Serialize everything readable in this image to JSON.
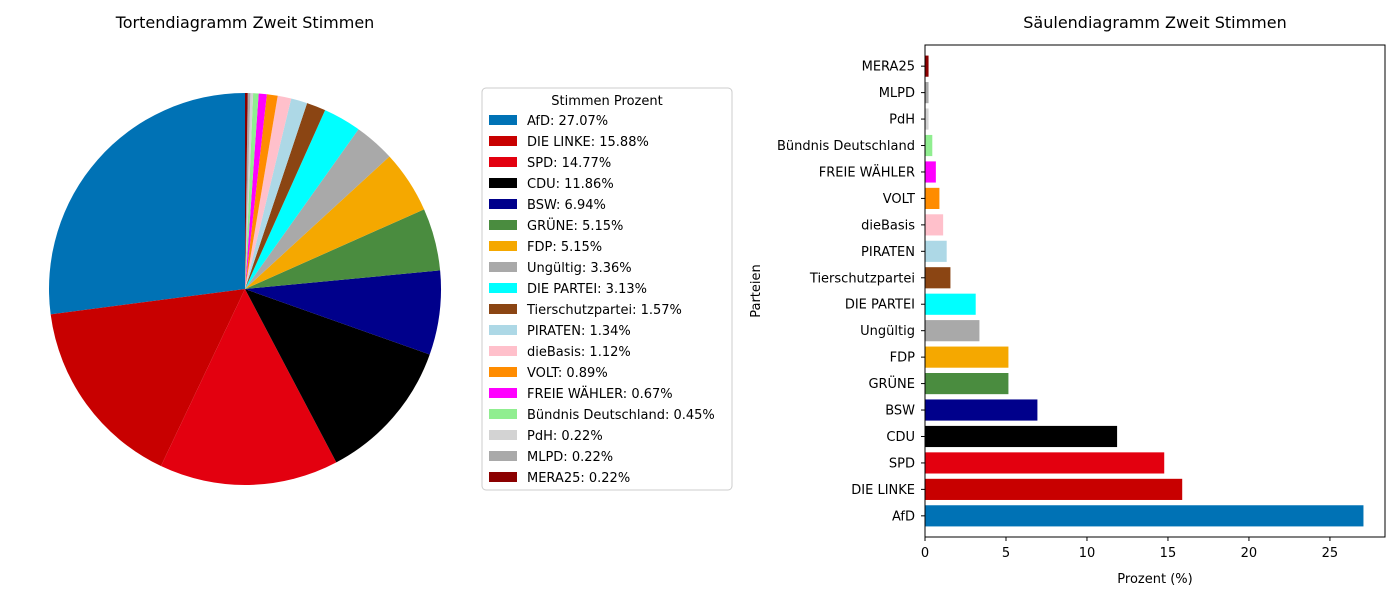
{
  "figure": {
    "pie_title": "Tortendiagramm Zweit Stimmen",
    "bar_title": "Säulendiagramm Zweit Stimmen",
    "legend_title": "Stimmen Prozent"
  },
  "chart_data": [
    {
      "type": "pie",
      "title": "Tortendiagramm Zweit Stimmen",
      "legend_title": "Stimmen Prozent",
      "legend_position": "right",
      "start_angle_deg": 90,
      "direction": "counterclockwise",
      "slices": [
        {
          "label": "AfD",
          "value": 27.07,
          "color": "#0072b5",
          "legend": "AfD: 27.07%"
        },
        {
          "label": "DIE LINKE",
          "value": 15.88,
          "color": "#c80000",
          "legend": "DIE LINKE: 15.88%"
        },
        {
          "label": "SPD",
          "value": 14.77,
          "color": "#e3000f",
          "legend": "SPD: 14.77%"
        },
        {
          "label": "CDU",
          "value": 11.86,
          "color": "#000000",
          "legend": "CDU: 11.86%"
        },
        {
          "label": "BSW",
          "value": 6.94,
          "color": "#00008b",
          "legend": "BSW: 6.94%"
        },
        {
          "label": "GRÜNE",
          "value": 5.15,
          "color": "#4a8c3f",
          "legend": "GRÜNE: 5.15%"
        },
        {
          "label": "FDP",
          "value": 5.15,
          "color": "#f5a800",
          "legend": "FDP: 5.15%"
        },
        {
          "label": "Ungültig",
          "value": 3.36,
          "color": "#a9a9a9",
          "legend": "Ungültig: 3.36%"
        },
        {
          "label": "DIE PARTEI",
          "value": 3.13,
          "color": "#00ffff",
          "legend": "DIE PARTEI: 3.13%"
        },
        {
          "label": "Tierschutzpartei",
          "value": 1.57,
          "color": "#8b4513",
          "legend": "Tierschutzpartei: 1.57%"
        },
        {
          "label": "PIRATEN",
          "value": 1.34,
          "color": "#add8e6",
          "legend": "PIRATEN: 1.34%"
        },
        {
          "label": "dieBasis",
          "value": 1.12,
          "color": "#ffc0cb",
          "legend": "dieBasis: 1.12%"
        },
        {
          "label": "VOLT",
          "value": 0.89,
          "color": "#ff8c00",
          "legend": "VOLT: 0.89%"
        },
        {
          "label": "FREIE WÄHLER",
          "value": 0.67,
          "color": "#ff00ff",
          "legend": "FREIE WÄHLER: 0.67%"
        },
        {
          "label": "Bündnis Deutschland",
          "value": 0.45,
          "color": "#90ee90",
          "legend": "Bündnis Deutschland: 0.45%"
        },
        {
          "label": "PdH",
          "value": 0.22,
          "color": "#d3d3d3",
          "legend": "PdH: 0.22%"
        },
        {
          "label": "MLPD",
          "value": 0.22,
          "color": "#a9a9a9",
          "legend": "MLPD: 0.22%"
        },
        {
          "label": "MERA25",
          "value": 0.22,
          "color": "#8b0000",
          "legend": "MERA25: 0.22%"
        }
      ]
    },
    {
      "type": "bar",
      "orientation": "horizontal",
      "title": "Säulendiagramm Zweit Stimmen",
      "xlabel": "Prozent (%)",
      "ylabel": "Parteien",
      "xlim": [
        0,
        28.4
      ],
      "xticks": [
        0,
        5,
        10,
        15,
        20,
        25
      ],
      "grid": false,
      "categories": [
        "AfD",
        "DIE LINKE",
        "SPD",
        "CDU",
        "BSW",
        "GRÜNE",
        "FDP",
        "Ungültig",
        "DIE PARTEI",
        "Tierschutzpartei",
        "PIRATEN",
        "dieBasis",
        "VOLT",
        "FREIE WÄHLER",
        "Bündnis Deutschland",
        "PdH",
        "MLPD",
        "MERA25"
      ],
      "values": [
        27.07,
        15.88,
        14.77,
        11.86,
        6.94,
        5.15,
        5.15,
        3.36,
        3.13,
        1.57,
        1.34,
        1.12,
        0.89,
        0.67,
        0.45,
        0.22,
        0.22,
        0.22
      ],
      "colors": [
        "#0072b5",
        "#c80000",
        "#e3000f",
        "#000000",
        "#00008b",
        "#4a8c3f",
        "#f5a800",
        "#a9a9a9",
        "#00ffff",
        "#8b4513",
        "#add8e6",
        "#ffc0cb",
        "#ff8c00",
        "#ff00ff",
        "#90ee90",
        "#d3d3d3",
        "#a9a9a9",
        "#8b0000"
      ]
    }
  ]
}
